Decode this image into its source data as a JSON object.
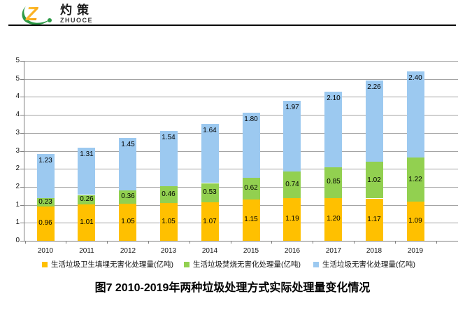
{
  "logo": {
    "brand_cn": "灼策",
    "brand_en": "ZHUOCE"
  },
  "figure_title": "图7  2010-2019年两种垃圾处理方式实际处理量变化情况",
  "chart_data": {
    "type": "bar",
    "stacked": true,
    "title": "图7  2010-2019年两种垃圾处理方式实际处理量变化情况",
    "categories": [
      "2010",
      "2011",
      "2012",
      "2013",
      "2014",
      "2015",
      "2016",
      "2017",
      "2018",
      "2019"
    ],
    "series": [
      {
        "name": "生活垃圾卫生填埋无害化处理量(亿吨)",
        "color": "#FFC000",
        "values": [
          0.96,
          1.01,
          1.05,
          1.05,
          1.07,
          1.15,
          1.19,
          1.2,
          1.17,
          1.09
        ]
      },
      {
        "name": "生活垃圾焚烧无害化处理量(亿吨)",
        "color": "#92D050",
        "values": [
          0.23,
          0.26,
          0.36,
          0.46,
          0.53,
          0.62,
          0.74,
          0.85,
          1.02,
          1.22
        ]
      },
      {
        "name": "生活垃圾无害化处理量(亿吨)",
        "color": "#9CC9F0",
        "values": [
          1.23,
          1.31,
          1.45,
          1.54,
          1.64,
          1.8,
          1.97,
          2.1,
          2.26,
          2.4
        ]
      }
    ],
    "xlabel": "",
    "ylabel": "",
    "ylim": [
      0,
      5
    ],
    "ytick_step": 0.5,
    "ytick_labels_top_to_bottom": [
      "5",
      "5",
      "4",
      "4",
      "3",
      "3",
      "2",
      "2",
      "1",
      "1",
      "0"
    ],
    "value_label_decimals": 2,
    "grid": true,
    "legend_position": "bottom",
    "units": "亿吨"
  }
}
